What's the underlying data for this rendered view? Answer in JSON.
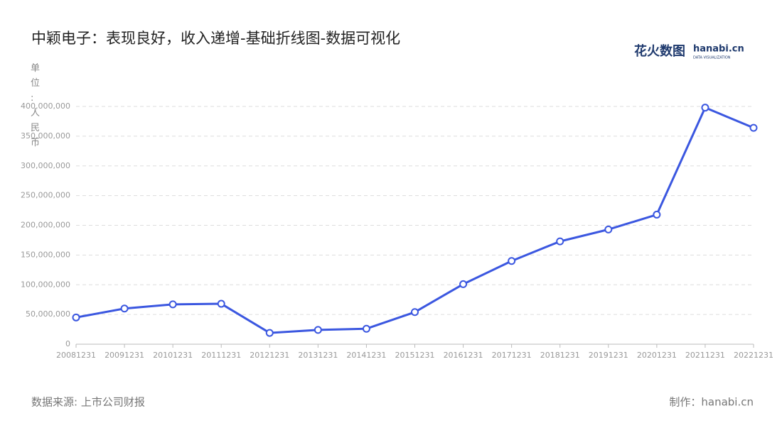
{
  "chart_data": {
    "type": "line",
    "title": "中颖电子：表现良好，收入递增-基础折线图-数据可视化",
    "y_label": "单位:人民币",
    "source": "数据来源: 上市公司财报",
    "credit": "制作：hanabi.cn",
    "logo": {
      "name": "花火数图",
      "site": "hanabi.cn",
      "tagline": "DATA VISUALIZATION"
    },
    "categories": [
      "20081231",
      "20091231",
      "20101231",
      "20111231",
      "20121231",
      "20131231",
      "20141231",
      "20151231",
      "20161231",
      "20171231",
      "20181231",
      "20191231",
      "20201231",
      "20211231",
      "20221231"
    ],
    "values": [
      45000000,
      60000000,
      67000000,
      68000000,
      19000000,
      24000000,
      26000000,
      54000000,
      101000000,
      140000000,
      173000000,
      193000000,
      218000000,
      398000000,
      364000000
    ],
    "color": "#3b57e0",
    "ylim": [
      0,
      400000000
    ],
    "yticks": [
      0,
      {
        "value": 50000000,
        "label": "50,000,000"
      },
      {
        "value": 100000000,
        "label": "100,000,000"
      },
      {
        "value": 150000000,
        "label": "150,000,000"
      },
      {
        "value": 200000000,
        "label": "200,000,000"
      },
      {
        "value": 250000000,
        "label": "250,000,000"
      },
      {
        "value": 300000000,
        "label": "300,000,000"
      },
      {
        "value": 350000000,
        "label": "350,000,000"
      },
      {
        "value": 400000000,
        "label": "400,000,000"
      }
    ],
    "grid": true
  }
}
